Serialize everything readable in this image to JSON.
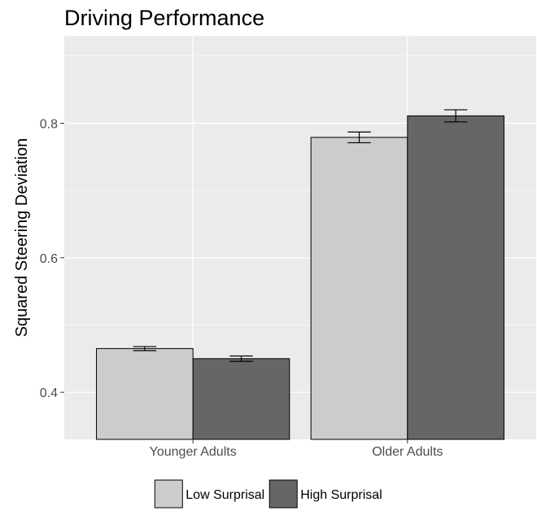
{
  "chart_data": {
    "type": "bar",
    "title": "Driving Performance",
    "xlabel": "",
    "ylabel": "Squared Steering Deviation",
    "categories": [
      "Younger Adults",
      "Older Adults"
    ],
    "series": [
      {
        "name": "Low Surprisal",
        "color": "#cccccc",
        "values": [
          0.465,
          0.779
        ],
        "error": [
          0.003,
          0.008
        ]
      },
      {
        "name": "High Surprisal",
        "color": "#666666",
        "values": [
          0.45,
          0.811
        ],
        "error": [
          0.004,
          0.009
        ]
      }
    ],
    "yticks": [
      "0.4",
      "0.6",
      "0.8"
    ],
    "ylim": [
      0.33,
      0.93
    ],
    "grid": true,
    "legend_position": "bottom"
  },
  "colors": {
    "panel_background": "#ebebeb",
    "grid": "#ffffff",
    "bar_outline": "#000000"
  }
}
